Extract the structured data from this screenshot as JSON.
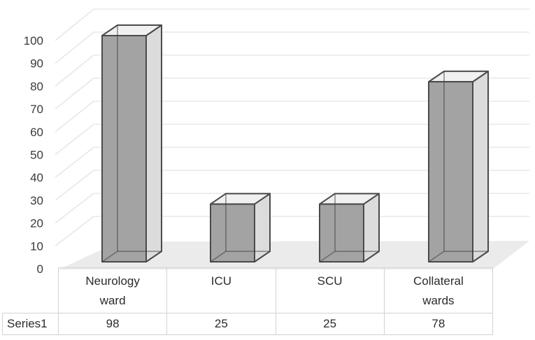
{
  "chart_data": {
    "type": "bar",
    "style": "3d-column",
    "title": "",
    "xlabel": "",
    "ylabel": "",
    "categories": [
      "Neurology ward",
      "ICU",
      "SCU",
      "Collateral wards"
    ],
    "categories_display": [
      [
        "Neurology",
        "ward"
      ],
      [
        "ICU"
      ],
      [
        "SCU"
      ],
      [
        "Collateral",
        "wards"
      ]
    ],
    "series": [
      {
        "name": "Series1",
        "values": [
          98,
          25,
          25,
          78
        ]
      }
    ],
    "ylim": [
      0,
      100
    ],
    "ytick_step": 10,
    "yticks": [
      0,
      10,
      20,
      30,
      40,
      50,
      60,
      70,
      80,
      90,
      100
    ],
    "grid": "horizontal-back-wall",
    "legend_position": "none",
    "data_table_shown": true,
    "colors": {
      "bar_front": "#a3a3a3",
      "bar_side": "#dcdcdc",
      "bar_top": "#f0f0f0",
      "bar_edge": "#4a4a4a",
      "hidden_edge": "rgba(60,60,60,0.55)",
      "floor": "#ebebeb",
      "gridline": "#eeeeee",
      "side_wall_gridline": "#e9e9e9",
      "axis_text": "#3a3a3a",
      "table_border": "#d2d2d2",
      "table_text": "#2b2b2b",
      "background": "#ffffff"
    }
  }
}
